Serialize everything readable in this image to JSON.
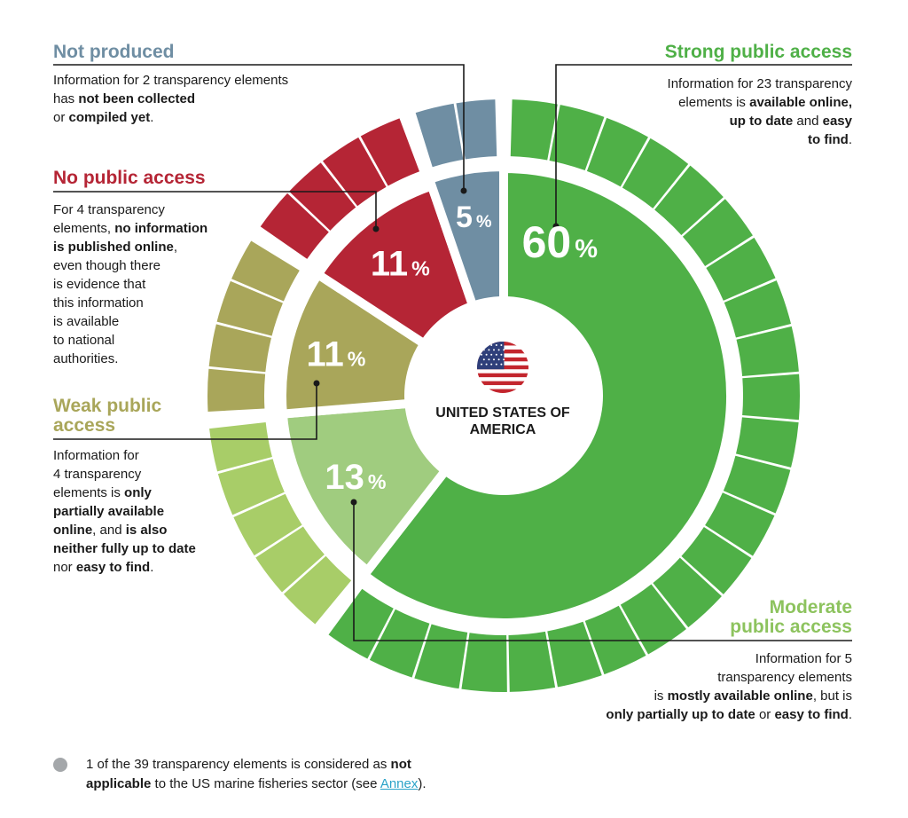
{
  "chart_data": {
    "type": "pie",
    "center_label": "UNITED STATES OF AMERICA",
    "total_elements": 39,
    "segments": [
      {
        "key": "strong",
        "name": "Strong public access",
        "percent": 60,
        "percent_text": "60",
        "count": 23,
        "color": "#4fb047",
        "ring_color": "#4fb047"
      },
      {
        "key": "moderate",
        "name": "Moderate public access",
        "percent": 13,
        "percent_text": "13",
        "count": 5,
        "color": "#a0cc7f",
        "ring_color": "#a8cd68"
      },
      {
        "key": "weak",
        "name": "Weak public access",
        "percent": 11,
        "percent_text": "11",
        "count": 4,
        "color": "#a9a65a",
        "ring_color": "#a9a65a"
      },
      {
        "key": "none",
        "name": "No public access",
        "percent": 11,
        "percent_text": "11",
        "count": 4,
        "color": "#b52535",
        "ring_color": "#b52535"
      },
      {
        "key": "not_produced",
        "name": "Not produced",
        "percent": 5,
        "percent_text": "5",
        "count": 2,
        "color": "#6f8ea3",
        "ring_color": "#6f8ea3"
      }
    ],
    "percent_symbol": "%"
  },
  "annotations": {
    "not_produced": {
      "heading": "Not produced",
      "parts": [
        [
          "Information for 2 transparency elements",
          false
        ],
        [
          "\n",
          false
        ],
        [
          "has ",
          false
        ],
        [
          "not been collected",
          true
        ],
        [
          "\n",
          false
        ],
        [
          "or ",
          false
        ],
        [
          "compiled yet",
          true
        ],
        [
          ".",
          false
        ]
      ]
    },
    "no_access": {
      "heading": "No public access",
      "parts": [
        [
          "For 4 transparency",
          false
        ],
        [
          "\n",
          false
        ],
        [
          "elements, ",
          false
        ],
        [
          "no information",
          true
        ],
        [
          "\n",
          false
        ],
        [
          "is published online",
          true
        ],
        [
          ",",
          false
        ],
        [
          "\n",
          false
        ],
        [
          "even though there",
          false
        ],
        [
          "\n",
          false
        ],
        [
          "is evidence that",
          false
        ],
        [
          "\n",
          false
        ],
        [
          "this information",
          false
        ],
        [
          "\n",
          false
        ],
        [
          "is available",
          false
        ],
        [
          "\n",
          false
        ],
        [
          "to national",
          false
        ],
        [
          "\n",
          false
        ],
        [
          "authorities.",
          false
        ]
      ]
    },
    "weak": {
      "heading": "Weak public access",
      "parts": [
        [
          "Information for",
          false
        ],
        [
          "\n",
          false
        ],
        [
          "4 transparency",
          false
        ],
        [
          "\n",
          false
        ],
        [
          "elements is ",
          false
        ],
        [
          "only",
          true
        ],
        [
          "\n",
          false
        ],
        [
          "partially available",
          true
        ],
        [
          "\n",
          false
        ],
        [
          "online",
          true
        ],
        [
          ", and ",
          false
        ],
        [
          "is also",
          true
        ],
        [
          "\n",
          false
        ],
        [
          "neither fully up to date",
          true
        ],
        [
          "\n",
          false
        ],
        [
          "nor ",
          false
        ],
        [
          "easy to find",
          true
        ],
        [
          ".",
          false
        ]
      ]
    },
    "strong": {
      "heading": "Strong public access",
      "parts": [
        [
          "Information for 23 transparency",
          false
        ],
        [
          "\n",
          false
        ],
        [
          "elements is ",
          false
        ],
        [
          "available online,",
          true
        ],
        [
          "\n",
          false
        ],
        [
          "up to date",
          true
        ],
        [
          " and ",
          false
        ],
        [
          "easy",
          true
        ],
        [
          "\n",
          false
        ],
        [
          "to find",
          true
        ],
        [
          ".",
          false
        ]
      ]
    },
    "moderate": {
      "heading": "Moderate public access",
      "parts": [
        [
          "Information for 5",
          false
        ],
        [
          "\n",
          false
        ],
        [
          "transparency elements",
          false
        ],
        [
          "\n",
          false
        ],
        [
          "is ",
          false
        ],
        [
          "mostly available online",
          true
        ],
        [
          ", but is",
          false
        ],
        [
          "\n",
          false
        ],
        [
          "only partially up to date",
          true
        ],
        [
          " or ",
          false
        ],
        [
          "easy to find",
          true
        ],
        [
          ".",
          false
        ]
      ]
    }
  },
  "footnote": {
    "dot_color": "#a4a7aa",
    "parts": [
      [
        "1 of the 39 transparency elements is considered as ",
        false
      ],
      [
        "not",
        true
      ],
      [
        "\n",
        false
      ],
      [
        "applicable",
        true
      ],
      [
        " to the US marine fisheries sector (see ",
        false
      ],
      [
        "Annex",
        "link"
      ],
      [
        ").",
        false
      ]
    ],
    "link_color": "#2aa3c8"
  },
  "flag": {
    "icon": "us-flag-icon",
    "red": "#c3262e",
    "white": "#ffffff",
    "blue": "#2f3f7a"
  },
  "text_color": "#1a1a1a",
  "connector_color": "#1a1a1a"
}
